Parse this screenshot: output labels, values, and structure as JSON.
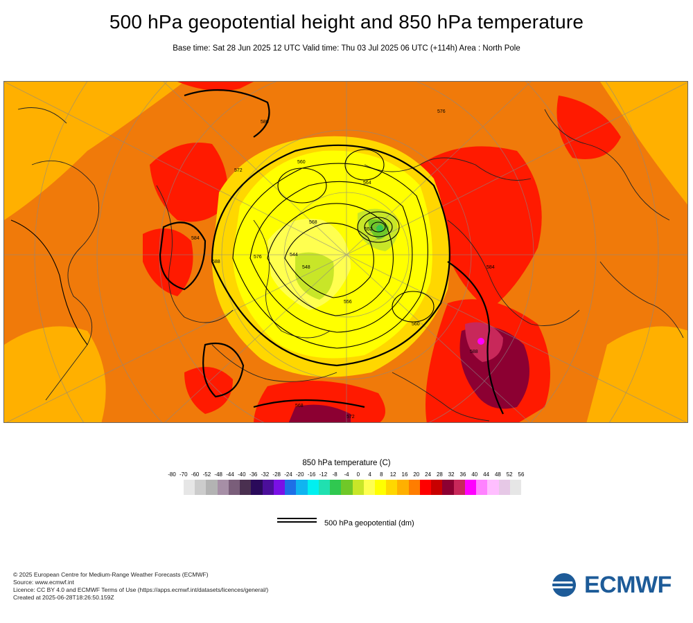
{
  "header": {
    "title": "500 hPa geopotential height and 850 hPa temperature",
    "subtitle": "Base time: Sat 28 Jun 2025 12 UTC Valid time: Thu 03 Jul 2025 06 UTC (+114h) Area : North Pole"
  },
  "map": {
    "contour_labels": [
      "584",
      "588",
      "576",
      "568",
      "552",
      "548",
      "544",
      "556",
      "560",
      "572",
      "580",
      "560",
      "564",
      "584",
      "588",
      "576",
      "568",
      "572"
    ]
  },
  "colorbar": {
    "title": "850 hPa temperature (C)",
    "ticks": [
      "-80",
      "-70",
      "-60",
      "-52",
      "-48",
      "-44",
      "-40",
      "-36",
      "-32",
      "-28",
      "-24",
      "-20",
      "-16",
      "-12",
      "-8",
      "-4",
      "0",
      "4",
      "8",
      "12",
      "16",
      "20",
      "24",
      "28",
      "32",
      "36",
      "40",
      "44",
      "48",
      "52",
      "56"
    ],
    "colors": [
      "#e6e6e6",
      "#cccccc",
      "#b3b3b3",
      "#a68fa6",
      "#7a5e7a",
      "#4a3050",
      "#2a0a5a",
      "#4b0f9a",
      "#7a10e6",
      "#1e6fe6",
      "#10b4f0",
      "#00f0f0",
      "#20e0b0",
      "#30c850",
      "#70c828",
      "#c8e628",
      "#ffff50",
      "#ffff00",
      "#ffd700",
      "#ffb000",
      "#ff7d00",
      "#ff0000",
      "#c80000",
      "#8c0032",
      "#c8285a",
      "#ff00ff",
      "#ff82ff",
      "#ffbeff",
      "#e6c8e6",
      "#e6e6e6"
    ]
  },
  "geopotential_legend": {
    "label": "500 hPa geopotential (dm)"
  },
  "footer": {
    "lines": [
      "© 2025 European Centre for Medium-Range Weather Forecasts (ECMWF)",
      "Source: www.ecmwf.int",
      "Licence: CC BY 4.0 and ECMWF Terms of Use (https://apps.ecmwf.int/datasets/licences/general/)",
      "Created at 2025-06-28T18:26:50.159Z"
    ],
    "logo_text": "ECMWF",
    "logo_color": "#1d5b98"
  }
}
